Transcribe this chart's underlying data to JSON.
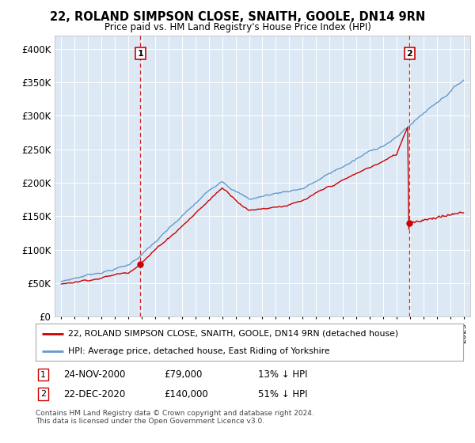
{
  "title": "22, ROLAND SIMPSON CLOSE, SNAITH, GOOLE, DN14 9RN",
  "subtitle": "Price paid vs. HM Land Registry's House Price Index (HPI)",
  "footer": "Contains HM Land Registry data © Crown copyright and database right 2024.\nThis data is licensed under the Open Government Licence v3.0.",
  "legend_line1": "22, ROLAND SIMPSON CLOSE, SNAITH, GOOLE, DN14 9RN (detached house)",
  "legend_line2": "HPI: Average price, detached house, East Riding of Yorkshire",
  "sale1_date": "24-NOV-2000",
  "sale1_price": 79000,
  "sale1_hpi_pct": "13% ↓ HPI",
  "sale2_date": "22-DEC-2020",
  "sale2_price": 140000,
  "sale2_hpi_pct": "51% ↓ HPI",
  "sale1_x": 2000.9,
  "sale2_x": 2020.97,
  "plot_bg": "#dce9f5",
  "fig_bg": "#ffffff",
  "red_color": "#cc0000",
  "blue_color": "#6699cc",
  "grid_color": "#ffffff",
  "dashed_line_color": "#cc0000",
  "annotation_box_edge": "#cc0000",
  "ylim": [
    0,
    420000
  ],
  "yticks": [
    0,
    50000,
    100000,
    150000,
    200000,
    250000,
    300000,
    350000,
    400000
  ],
  "ytick_labels": [
    "£0",
    "£50K",
    "£100K",
    "£150K",
    "£200K",
    "£250K",
    "£300K",
    "£350K",
    "£400K"
  ],
  "xlim_left": 1994.5,
  "xlim_right": 2025.5
}
